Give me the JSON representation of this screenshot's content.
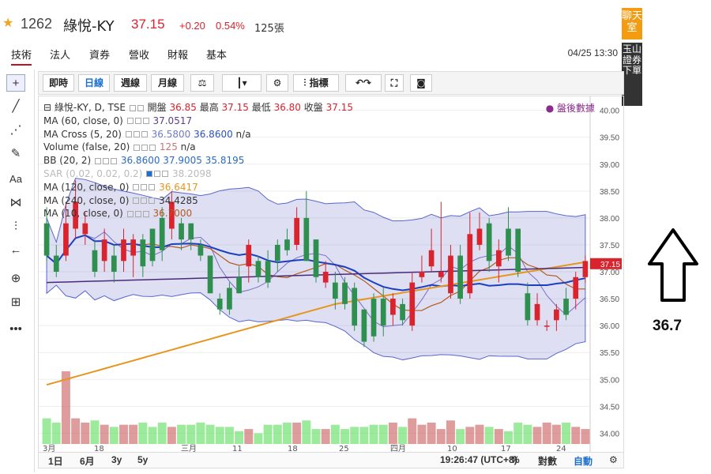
{
  "header": {
    "code": "1262",
    "name": "綠悅-KY",
    "price": "37.15",
    "change": "+0.20",
    "change_pct": "0.54%",
    "volume": "125張"
  },
  "tabs": [
    {
      "label": "技術"
    },
    {
      "label": "法人"
    },
    {
      "label": "資券"
    },
    {
      "label": "營收"
    },
    {
      "label": "財報"
    },
    {
      "label": "基本"
    }
  ],
  "datetime": "04/25 13:30",
  "sidebar": {
    "chat": "聊天室",
    "esun": "玉山證券下單"
  },
  "toolbar": {
    "intraday": "即時",
    "daily": "日線",
    "weekly": "週線",
    "monthly": "月線",
    "indicators": "指標"
  },
  "legend": {
    "main_title": "綠悅-KY, D, TSE",
    "open_label": "開盤",
    "open": "36.85",
    "high_label": "最高",
    "high": "37.15",
    "low_label": "最低",
    "low": "36.80",
    "close_label": "收盤",
    "close": "37.15",
    "ma60": "MA (60, close, 0)",
    "ma60_val": "37.0517",
    "macross": "MA Cross (5, 20)",
    "macross_v1": "36.5800",
    "macross_v2": "36.8600",
    "macross_v3": "n/a",
    "volume": "Volume (false, 20)",
    "volume_v1": "125",
    "volume_v2": "n/a",
    "bb": "BB (20, 2)",
    "bb_v1": "36.8600",
    "bb_v2": "37.9005",
    "bb_v3": "35.8195",
    "sar": "SAR (0.02, 0.02, 0.2)",
    "sar_val": "38.2098",
    "ma120": "MA (120, close, 0)",
    "ma120_val": "36.6417",
    "ma240": "MA (240, close, 0)",
    "ma240_val": "34.4285",
    "ma10": "MA (10, close, 0)",
    "ma10_val": "36.7000",
    "after_hours": "● 盤後數據"
  },
  "bottom": {
    "d1": "1日",
    "m6": "6月",
    "y3": "3y",
    "y5": "5y",
    "time": "19:26:47 (UTC+8)",
    "pct": "%",
    "log": "對數",
    "auto": "自動"
  },
  "annotation": {
    "value": "36.7"
  },
  "chart_data": {
    "type": "candlestick",
    "x_labels": [
      "3月",
      "18",
      "三月",
      "11",
      "18",
      "25",
      "四月",
      "10",
      "17",
      "24"
    ],
    "ylim": [
      33.8,
      40.2
    ],
    "y_ticks": [
      "40.00",
      "39.50",
      "39.00",
      "38.50",
      "38.00",
      "37.50",
      "37.00",
      "36.50",
      "36.00",
      "35.50",
      "35.00",
      "34.50",
      "34.00"
    ],
    "last_price_label": "37.15",
    "candles": [
      [
        37.9,
        37.3,
        38.2,
        37.2
      ],
      [
        37.3,
        37.0,
        37.5,
        36.9
      ],
      [
        37.3,
        37.9,
        38.3,
        37.2
      ],
      [
        37.8,
        38.3,
        38.7,
        37.6
      ],
      [
        37.7,
        37.9,
        38.1,
        37.5
      ],
      [
        37.4,
        37.0,
        37.6,
        36.9
      ],
      [
        37.2,
        37.6,
        37.8,
        37.0
      ],
      [
        37.3,
        37.0,
        37.5,
        36.8
      ],
      [
        37.2,
        37.6,
        37.8,
        37.0
      ],
      [
        37.3,
        37.6,
        37.7,
        36.9
      ],
      [
        37.6,
        37.1,
        37.7,
        36.9
      ],
      [
        37.8,
        37.2,
        37.8,
        37.1
      ],
      [
        38.0,
        37.4,
        38.2,
        37.2
      ],
      [
        37.8,
        38.3,
        38.5,
        37.6
      ],
      [
        37.9,
        37.6,
        38.0,
        37.4
      ],
      [
        37.9,
        37.6,
        37.9,
        37.4
      ],
      [
        37.5,
        37.3,
        37.6,
        37.2
      ],
      [
        37.3,
        36.6,
        37.3,
        36.6
      ],
      [
        36.5,
        36.3,
        36.6,
        36.2
      ],
      [
        36.7,
        36.3,
        36.8,
        36.2
      ],
      [
        36.9,
        36.6,
        37.1,
        36.6
      ],
      [
        37.1,
        37.5,
        37.6,
        36.8
      ],
      [
        37.2,
        36.9,
        37.3,
        36.8
      ],
      [
        37.2,
        36.8,
        37.4,
        36.7
      ],
      [
        37.5,
        37.2,
        37.6,
        37.0
      ],
      [
        37.6,
        37.4,
        37.8,
        37.3
      ],
      [
        37.5,
        38.0,
        38.2,
        37.4
      ],
      [
        38.0,
        37.2,
        38.5,
        37.2
      ],
      [
        37.6,
        36.9,
        37.6,
        36.8
      ],
      [
        36.8,
        37.0,
        37.2,
        36.7
      ],
      [
        36.8,
        36.5,
        37.0,
        36.3
      ],
      [
        36.8,
        36.4,
        36.9,
        36.3
      ],
      [
        36.7,
        36.0,
        36.8,
        35.9
      ],
      [
        36.3,
        35.7,
        36.3,
        35.6
      ],
      [
        36.5,
        35.8,
        36.6,
        35.7
      ],
      [
        36.5,
        36.0,
        36.7,
        35.8
      ],
      [
        36.2,
        36.5,
        36.6,
        36.0
      ],
      [
        36.4,
        36.1,
        36.5,
        36.0
      ],
      [
        36.0,
        36.8,
        37.0,
        35.9
      ],
      [
        36.9,
        37.0,
        37.3,
        36.8
      ],
      [
        37.1,
        37.4,
        37.8,
        37.0
      ],
      [
        36.9,
        37.0,
        38.3,
        36.8
      ],
      [
        36.6,
        37.3,
        37.5,
        36.5
      ],
      [
        37.3,
        36.5,
        37.5,
        36.4
      ],
      [
        36.6,
        37.7,
        38.1,
        36.5
      ],
      [
        37.5,
        37.8,
        38.1,
        37.4
      ],
      [
        37.9,
        37.2,
        38.0,
        37.0
      ],
      [
        37.1,
        37.4,
        37.6,
        36.8
      ],
      [
        37.8,
        37.3,
        38.2,
        37.2
      ],
      [
        37.8,
        37.0,
        37.8,
        36.9
      ],
      [
        36.6,
        36.1,
        36.8,
        36.0
      ],
      [
        36.1,
        36.4,
        36.6,
        36.0
      ],
      [
        36.0,
        36.0,
        36.1,
        35.9
      ],
      [
        36.1,
        36.3,
        36.4,
        35.9
      ],
      [
        36.5,
        36.2,
        36.7,
        36.1
      ],
      [
        36.5,
        36.9,
        37.0,
        36.3
      ],
      [
        36.9,
        37.2,
        37.3,
        36.8
      ]
    ],
    "volumes": [
      12,
      10,
      34,
      12,
      10,
      11,
      9,
      8,
      9,
      9,
      10,
      8,
      10,
      8,
      9,
      9,
      10,
      9,
      8,
      8,
      6,
      7,
      5,
      9,
      9,
      10,
      10,
      11,
      7,
      7,
      9,
      7,
      8,
      8,
      9,
      9,
      10,
      8,
      12,
      9,
      10,
      7,
      11,
      7,
      8,
      9,
      8,
      7,
      6,
      10,
      9,
      8,
      10,
      9,
      10,
      8,
      7
    ]
  }
}
